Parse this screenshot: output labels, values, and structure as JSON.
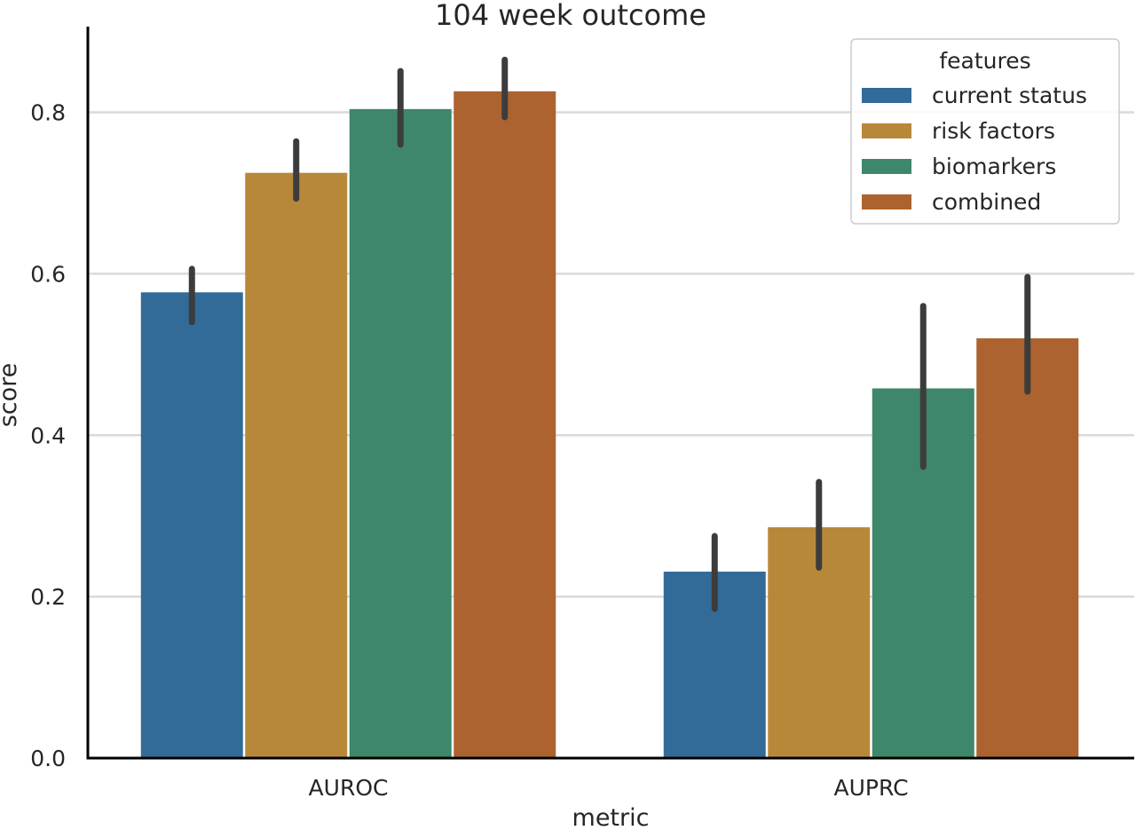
{
  "chart_data": {
    "type": "bar",
    "title": "104 week outcome",
    "xlabel": "metric",
    "ylabel": "score",
    "categories": [
      "AUROC",
      "AUPRC"
    ],
    "ylim": [
      0,
      0.906
    ],
    "yticks": [
      "0.0",
      "0.2",
      "0.4",
      "0.6",
      "0.8"
    ],
    "grid": true,
    "legend": {
      "title": "features",
      "placement": "top-right"
    },
    "series": [
      {
        "name": "current status",
        "color": "#336b98",
        "values": [
          0.577,
          0.231
        ],
        "ci_low": [
          0.54,
          0.185
        ],
        "ci_high": [
          0.606,
          0.275
        ]
      },
      {
        "name": "risk factors",
        "color": "#b8883a",
        "values": [
          0.725,
          0.286
        ],
        "ci_low": [
          0.693,
          0.236
        ],
        "ci_high": [
          0.764,
          0.342
        ]
      },
      {
        "name": "biomarkers",
        "color": "#3e876a",
        "values": [
          0.804,
          0.458
        ],
        "ci_low": [
          0.76,
          0.361
        ],
        "ci_high": [
          0.851,
          0.56
        ]
      },
      {
        "name": "combined",
        "color": "#ac632f",
        "values": [
          0.826,
          0.52
        ],
        "ci_low": [
          0.794,
          0.454
        ],
        "ci_high": [
          0.865,
          0.596
        ]
      }
    ]
  }
}
